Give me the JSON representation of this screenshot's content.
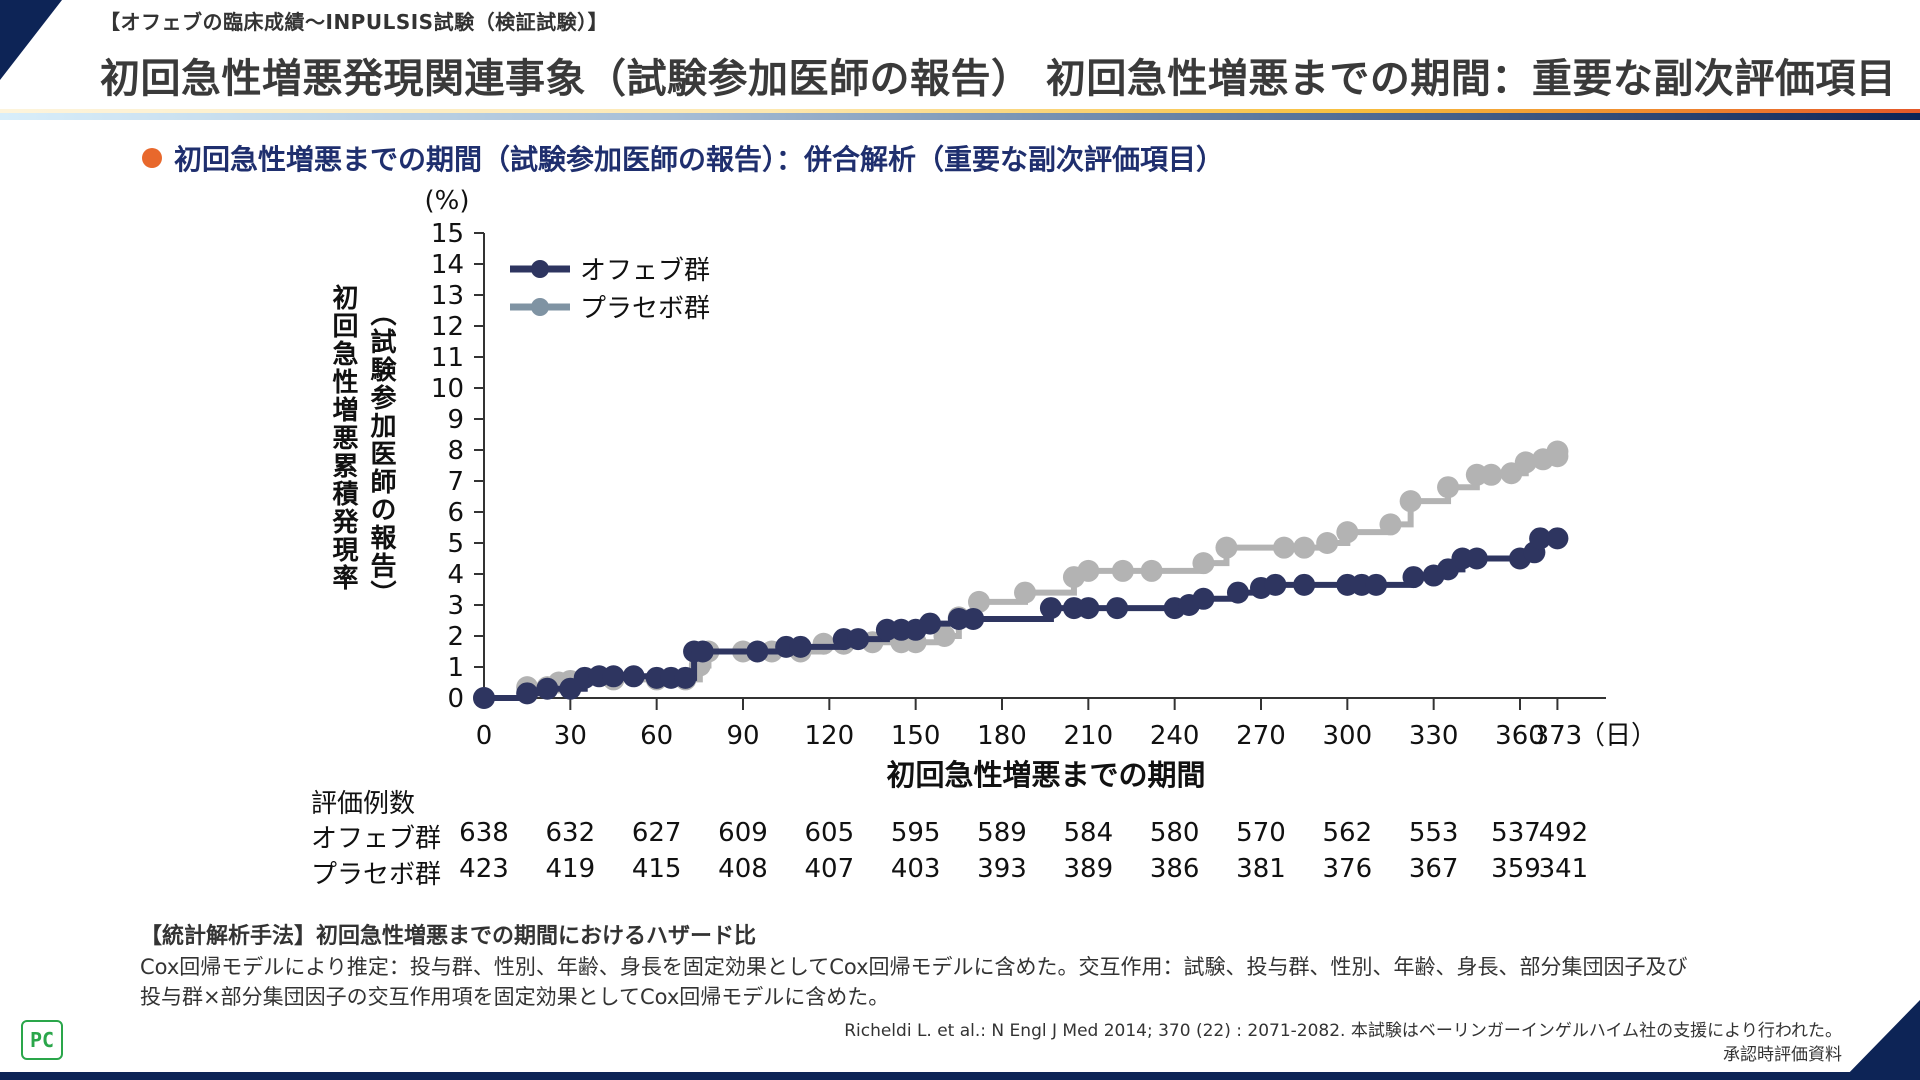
{
  "header": {
    "breadcrumb": "【オフェブの臨床成績〜INPULSIS試験（検証試験）】",
    "title": "初回急性増悪発現関連事象（試験参加医師の報告） 初回急性増悪までの期間：重要な副次評価項目"
  },
  "section": {
    "heading": "初回急性増悪までの期間（試験参加医師の報告）：併合解析（重要な副次評価項目）"
  },
  "colors": {
    "ofev": "#2e3560",
    "placebo": "#b3b3b3",
    "placebo_legend": "#7f93a3",
    "accent_orange": "#e8682c",
    "navy": "#0d2456"
  },
  "chart_data": {
    "type": "line",
    "subtype": "step",
    "title": "初回急性増悪までの期間（試験参加医師の報告）：併合解析（重要な副次評価項目）",
    "ylabel_main": "初回急性増悪累積発現率",
    "ylabel_sub": "（試験参加医師の報告）",
    "yunit": "(%)",
    "xlabel": "初回急性増悪までの期間",
    "xunit": "（日）",
    "xlim": [
      0,
      373
    ],
    "ylim": [
      0,
      15
    ],
    "xticks": [
      0,
      30,
      60,
      90,
      120,
      150,
      180,
      210,
      240,
      270,
      300,
      330,
      360,
      373
    ],
    "yticks": [
      0,
      1,
      2,
      3,
      4,
      5,
      6,
      7,
      8,
      9,
      10,
      11,
      12,
      13,
      14,
      15
    ],
    "grid": false,
    "legend_position": "top-left",
    "series": [
      {
        "name": "プラセボ群",
        "key": "placebo",
        "points": [
          [
            0,
            0
          ],
          [
            15,
            0.35
          ],
          [
            22,
            0.35
          ],
          [
            26,
            0.5
          ],
          [
            30,
            0.55
          ],
          [
            45,
            0.6
          ],
          [
            60,
            0.6
          ],
          [
            70,
            0.6
          ],
          [
            75,
            1.05
          ],
          [
            78,
            1.5
          ],
          [
            90,
            1.5
          ],
          [
            100,
            1.5
          ],
          [
            110,
            1.5
          ],
          [
            118,
            1.75
          ],
          [
            125,
            1.75
          ],
          [
            135,
            1.8
          ],
          [
            145,
            1.8
          ],
          [
            150,
            1.8
          ],
          [
            160,
            2.0
          ],
          [
            165,
            2.6
          ],
          [
            172,
            3.1
          ],
          [
            188,
            3.4
          ],
          [
            205,
            3.9
          ],
          [
            210,
            4.1
          ],
          [
            222,
            4.1
          ],
          [
            232,
            4.1
          ],
          [
            250,
            4.35
          ],
          [
            258,
            4.85
          ],
          [
            278,
            4.85
          ],
          [
            285,
            4.85
          ],
          [
            293,
            5.0
          ],
          [
            300,
            5.35
          ],
          [
            315,
            5.6
          ],
          [
            322,
            6.35
          ],
          [
            335,
            6.8
          ],
          [
            345,
            7.2
          ],
          [
            350,
            7.2
          ],
          [
            357,
            7.25
          ],
          [
            362,
            7.6
          ],
          [
            368,
            7.7
          ],
          [
            373,
            7.8
          ],
          [
            373,
            7.95
          ]
        ]
      },
      {
        "name": "オフェブ群",
        "key": "ofev",
        "points": [
          [
            0,
            0
          ],
          [
            15,
            0.15
          ],
          [
            22,
            0.3
          ],
          [
            30,
            0.3
          ],
          [
            35,
            0.65
          ],
          [
            40,
            0.7
          ],
          [
            45,
            0.7
          ],
          [
            52,
            0.7
          ],
          [
            60,
            0.65
          ],
          [
            65,
            0.65
          ],
          [
            70,
            0.65
          ],
          [
            73,
            1.5
          ],
          [
            76,
            1.5
          ],
          [
            95,
            1.5
          ],
          [
            105,
            1.65
          ],
          [
            110,
            1.65
          ],
          [
            125,
            1.9
          ],
          [
            130,
            1.9
          ],
          [
            140,
            2.2
          ],
          [
            145,
            2.2
          ],
          [
            150,
            2.2
          ],
          [
            155,
            2.4
          ],
          [
            165,
            2.55
          ],
          [
            170,
            2.55
          ],
          [
            197,
            2.9
          ],
          [
            205,
            2.9
          ],
          [
            210,
            2.9
          ],
          [
            220,
            2.9
          ],
          [
            240,
            2.9
          ],
          [
            245,
            3.0
          ],
          [
            250,
            3.2
          ],
          [
            262,
            3.4
          ],
          [
            270,
            3.55
          ],
          [
            275,
            3.65
          ],
          [
            285,
            3.65
          ],
          [
            300,
            3.65
          ],
          [
            305,
            3.65
          ],
          [
            310,
            3.65
          ],
          [
            323,
            3.9
          ],
          [
            330,
            3.95
          ],
          [
            335,
            4.15
          ],
          [
            340,
            4.5
          ],
          [
            345,
            4.5
          ],
          [
            360,
            4.5
          ],
          [
            365,
            4.7
          ],
          [
            367,
            5.15
          ],
          [
            373,
            5.15
          ]
        ]
      }
    ],
    "numbers_at_risk": {
      "title": "評価例数",
      "timepoints": [
        0,
        30,
        60,
        90,
        120,
        150,
        180,
        210,
        240,
        270,
        300,
        330,
        360,
        373
      ],
      "rows": [
        {
          "label": "オフェブ群",
          "values": [
            "638",
            "632",
            "627",
            "609",
            "605",
            "595",
            "589",
            "584",
            "580",
            "570",
            "562",
            "553",
            "537",
            "492"
          ]
        },
        {
          "label": "プラセボ群",
          "values": [
            "423",
            "419",
            "415",
            "408",
            "407",
            "403",
            "393",
            "389",
            "386",
            "381",
            "376",
            "367",
            "359",
            "341"
          ]
        }
      ]
    }
  },
  "legend": {
    "ofev_label": "オフェブ群",
    "placebo_label": "プラセボ群"
  },
  "notes": {
    "title": "【統計解析手法】初回急性増悪までの期間におけるハザード比",
    "line1": "Cox回帰モデルにより推定：投与群、性別、年齢、身長を固定効果としてCox回帰モデルに含めた。交互作用：試験、投与群、性別、年齢、身長、部分集団因子及び",
    "line2": "投与群×部分集団因子の交互作用項を固定効果としてCox回帰モデルに含めた。"
  },
  "footer": {
    "citation": "Richeldi L. et al.: N Engl J Med 2014; 370 (22) : 2071-2082. 本試験はベーリンガーインゲルハイム社の支援により行われた。",
    "source": "承認時評価資料",
    "logo_text": "PC"
  }
}
